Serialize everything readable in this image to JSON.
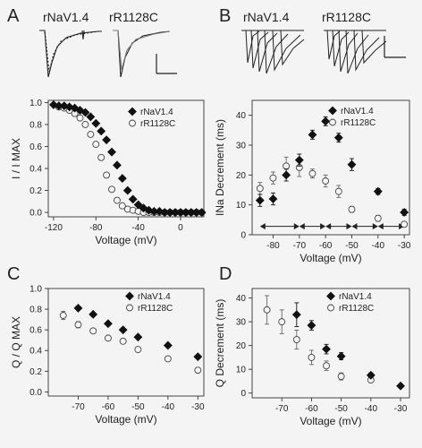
{
  "panels": [
    {
      "letter": "A",
      "trace_labels": [
        "rNaV1.4",
        "rR1128C"
      ]
    },
    {
      "letter": "B",
      "trace_labels": [
        "rNaV1.4",
        "rR1128C"
      ]
    },
    {
      "letter": "C"
    },
    {
      "letter": "D"
    }
  ],
  "chart_data": [
    {
      "id": "A",
      "type": "scatter",
      "xlabel": "Voltage (mV)",
      "ylabel": "I / I MAX",
      "xlim": [
        -125,
        22
      ],
      "ylim": [
        -0.04,
        1.02
      ],
      "xticks": [
        -120,
        -80,
        -40,
        0
      ],
      "yticks": [
        0.0,
        0.2,
        0.4,
        0.6,
        0.8,
        1.0
      ],
      "legend": "top-right",
      "series": [
        {
          "name": "rNaV1.4",
          "marker": "diamond",
          "x": [
            -120,
            -115,
            -110,
            -105,
            -100,
            -95,
            -90,
            -85,
            -80,
            -75,
            -70,
            -65,
            -60,
            -55,
            -50,
            -45,
            -40,
            -35,
            -30,
            -25,
            -20,
            -15,
            -10,
            -5,
            0,
            5,
            10,
            15,
            20
          ],
          "y": [
            0.98,
            0.97,
            0.97,
            0.96,
            0.95,
            0.93,
            0.91,
            0.87,
            0.81,
            0.74,
            0.66,
            0.55,
            0.43,
            0.31,
            0.2,
            0.12,
            0.07,
            0.04,
            0.02,
            0.01,
            0.01,
            0.0,
            0.0,
            0.0,
            0.0,
            0.0,
            0.0,
            0.0,
            0.0
          ]
        },
        {
          "name": "rR1128C",
          "marker": "circle",
          "x": [
            -115,
            -110,
            -105,
            -100,
            -95,
            -90,
            -85,
            -80,
            -75,
            -70,
            -65,
            -60,
            -55,
            -50,
            -45,
            -40,
            -35,
            -30,
            -25,
            -20,
            -15,
            -10,
            -5,
            0,
            5,
            10,
            15,
            20
          ],
          "y": [
            0.96,
            0.95,
            0.93,
            0.9,
            0.86,
            0.8,
            0.71,
            0.62,
            0.5,
            0.34,
            0.21,
            0.11,
            0.06,
            0.03,
            0.02,
            0.01,
            0.0,
            0.0,
            0.0,
            0.0,
            0.0,
            0.0,
            0.0,
            0.0,
            0.0,
            0.0,
            0.0,
            0.0
          ]
        }
      ]
    },
    {
      "id": "B",
      "type": "scatter",
      "xlabel": "Voltage (mV)",
      "ylabel": "INa Decrement (ms)",
      "xlim": [
        -88,
        -28
      ],
      "ylim": [
        0,
        45
      ],
      "xticks": [
        -80,
        -70,
        -60,
        -50,
        -40,
        -30
      ],
      "yticks": [
        0,
        10,
        20,
        30,
        40
      ],
      "legend": "top-right",
      "series": [
        {
          "name": "rNaV1.4",
          "marker": "diamond",
          "x": [
            -85,
            -80,
            -75,
            -70,
            -65,
            -60,
            -55,
            -50,
            -40,
            -30
          ],
          "y": [
            11.5,
            12,
            20,
            25,
            33.5,
            38,
            32.5,
            23.5,
            14.5,
            7.5
          ],
          "err": [
            2,
            2,
            2,
            2,
            1.5,
            1.5,
            1.5,
            2,
            1,
            1
          ]
        },
        {
          "name": "rR1128C",
          "marker": "circle",
          "x": [
            -85,
            -80,
            -75,
            -70,
            -65,
            -60,
            -55,
            -50,
            -40,
            -30
          ],
          "y": [
            15.5,
            19,
            23,
            22.5,
            20.5,
            18,
            14.5,
            8.5,
            5.5,
            3.5
          ],
          "err": [
            2,
            2,
            3,
            3,
            1.5,
            2,
            2,
            1,
            1,
            0.5
          ]
        }
      ],
      "arrows": [
        [
          -85,
          -70
        ],
        [
          -70,
          -60
        ],
        [
          -60,
          -50
        ],
        [
          -50,
          -40
        ],
        [
          -40,
          -30
        ]
      ]
    },
    {
      "id": "C",
      "type": "scatter",
      "xlabel": "Voltage (mV)",
      "ylabel": "Q / Q MAX",
      "xlim": [
        -80,
        -28
      ],
      "ylim": [
        -0.04,
        1.0
      ],
      "xticks": [
        -70,
        -60,
        -50,
        -40,
        -30
      ],
      "yticks": [
        0.0,
        0.2,
        0.4,
        0.6,
        0.8,
        1.0
      ],
      "legend": "top-right",
      "series": [
        {
          "name": "rNaV1.4",
          "marker": "diamond",
          "x": [
            -70,
            -65,
            -60,
            -55,
            -50,
            -40,
            -30
          ],
          "y": [
            0.81,
            0.75,
            0.66,
            0.6,
            0.53,
            0.45,
            0.34
          ]
        },
        {
          "name": "rR1128C",
          "marker": "circle",
          "x": [
            -75,
            -70,
            -65,
            -60,
            -55,
            -50,
            -40,
            -30
          ],
          "y": [
            0.74,
            0.65,
            0.59,
            0.52,
            0.49,
            0.41,
            0.32,
            0.21
          ],
          "err": [
            0.04,
            0.03,
            0.02,
            0.02,
            0.02,
            0.02,
            0.02,
            0.02
          ]
        }
      ]
    },
    {
      "id": "D",
      "type": "scatter",
      "xlabel": "Voltage (mV)",
      "ylabel": "Q Decrement (ms)",
      "xlim": [
        -80,
        -27
      ],
      "ylim": [
        -2,
        44
      ],
      "xticks": [
        -70,
        -60,
        -50,
        -40,
        -30
      ],
      "yticks": [
        0,
        10,
        20,
        30,
        40
      ],
      "legend": "top-right",
      "series": [
        {
          "name": "rNaV1.4",
          "marker": "diamond",
          "x": [
            -65,
            -60,
            -55,
            -50,
            -40,
            -30
          ],
          "y": [
            33,
            28.5,
            18.5,
            15.5,
            7.5,
            3
          ],
          "err": [
            5,
            2,
            2,
            1.5,
            1,
            0.5
          ]
        },
        {
          "name": "rR1128C",
          "marker": "circle",
          "x": [
            -75,
            -70,
            -65,
            -60,
            -55,
            -50,
            -40
          ],
          "y": [
            35,
            30,
            22.5,
            15,
            11.5,
            7,
            5.5
          ],
          "err": [
            6,
            5,
            4,
            3,
            2,
            1.5,
            1
          ]
        }
      ]
    }
  ]
}
